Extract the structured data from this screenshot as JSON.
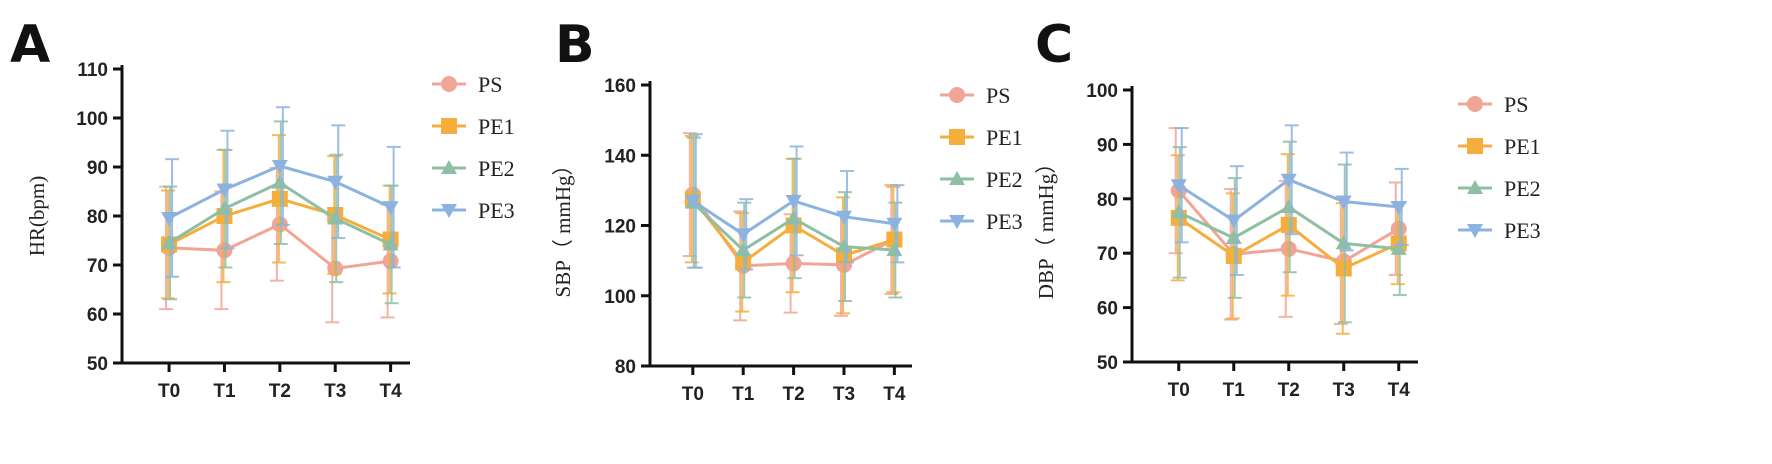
{
  "colors": {
    "PS": "#F0A596",
    "PE1": "#F5AE3C",
    "PE2": "#8FBFA3",
    "PE3": "#8CB3DF",
    "axis": "#111111"
  },
  "chart_data": [
    {
      "type": "line",
      "panel": "A",
      "ylabel": "HR(bpm)",
      "ylim": [
        50,
        110
      ],
      "yticks": [
        50,
        60,
        70,
        80,
        90,
        100,
        110
      ],
      "categories": [
        "T0",
        "T1",
        "T2",
        "T3",
        "T4"
      ],
      "legend_position": "right",
      "series": [
        {
          "name": "PS",
          "marker": "circle",
          "values": [
            73.5,
            73,
            78.3,
            69.3,
            70.8
          ],
          "errors": [
            12.5,
            12,
            11.5,
            11,
            11.5
          ]
        },
        {
          "name": "PE1",
          "marker": "square",
          "values": [
            74.2,
            80,
            83.5,
            80.2,
            75.2
          ],
          "errors": [
            11,
            13.5,
            13,
            12,
            11
          ]
        },
        {
          "name": "PE2",
          "marker": "triangle-up",
          "values": [
            74.5,
            81.5,
            86.8,
            79.5,
            74.2
          ],
          "errors": [
            11.5,
            12,
            12.5,
            13,
            12
          ]
        },
        {
          "name": "PE3",
          "marker": "triangle-down",
          "values": [
            79.6,
            85.4,
            90.2,
            87,
            81.8
          ],
          "errors": [
            12,
            12,
            12,
            11.5,
            12.3
          ]
        }
      ]
    },
    {
      "type": "line",
      "panel": "B",
      "ylabel": "SBP（ mmHg）",
      "ylim": [
        80,
        160
      ],
      "yticks": [
        80,
        100,
        120,
        140,
        160
      ],
      "categories": [
        "T0",
        "T1",
        "T2",
        "T3",
        "T4"
      ],
      "legend_position": "right",
      "series": [
        {
          "name": "PS",
          "marker": "circle",
          "values": [
            128.8,
            108.5,
            109.2,
            108.8,
            116
          ],
          "errors": [
            17.5,
            15.5,
            14,
            14.5,
            15.5
          ]
        },
        {
          "name": "PE1",
          "marker": "square",
          "values": [
            127.5,
            109.5,
            120,
            111.5,
            116
          ],
          "errors": [
            18,
            14,
            19,
            16.5,
            15
          ]
        },
        {
          "name": "PE2",
          "marker": "triangle-up",
          "values": [
            126.5,
            113,
            122,
            114,
            113
          ],
          "errors": [
            18.5,
            13.5,
            17,
            15.5,
            13.5
          ]
        },
        {
          "name": "PE3",
          "marker": "triangle-down",
          "values": [
            127,
            117.5,
            127,
            122.5,
            120.5
          ],
          "errors": [
            19,
            10,
            15.5,
            13,
            11
          ]
        }
      ]
    },
    {
      "type": "line",
      "panel": "C",
      "ylabel": "DBP（ mmHg）",
      "ylim": [
        50,
        100
      ],
      "yticks": [
        50,
        60,
        70,
        80,
        90,
        100
      ],
      "categories": [
        "T0",
        "T1",
        "T2",
        "T3",
        "T4"
      ],
      "legend_position": "right",
      "series": [
        {
          "name": "PS",
          "marker": "circle",
          "values": [
            81.5,
            69.8,
            70.8,
            68.5,
            74.5
          ],
          "errors": [
            11.5,
            12,
            12.5,
            11.5,
            8.5
          ]
        },
        {
          "name": "PE1",
          "marker": "square",
          "values": [
            76.5,
            69.5,
            75.2,
            67.2,
            71.8
          ],
          "errors": [
            11.5,
            11.5,
            13,
            12,
            7.5
          ]
        },
        {
          "name": "PE2",
          "marker": "triangle-up",
          "values": [
            77.5,
            72.8,
            78.5,
            71.8,
            70.8
          ],
          "errors": [
            12,
            11,
            12,
            14.5,
            8.5
          ]
        },
        {
          "name": "PE3",
          "marker": "triangle-down",
          "values": [
            82.5,
            76,
            83.5,
            79.5,
            78.5
          ],
          "errors": [
            10.5,
            10,
            10,
            9,
            7
          ]
        }
      ]
    }
  ]
}
